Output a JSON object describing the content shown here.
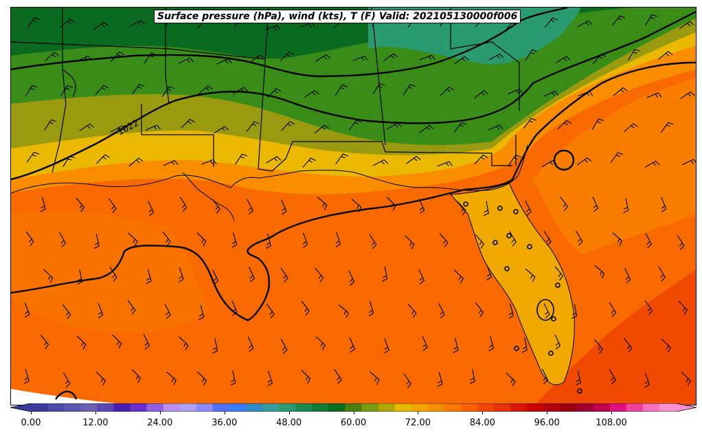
{
  "title": "Surface pressure (hPa), wind (kts), T (F) Valid: 202105130000f006",
  "isobar_label": "1022",
  "colorbar": {
    "ticks": [
      "0.00",
      "12.00",
      "24.00",
      "36.00",
      "48.00",
      "60.00",
      "72.00",
      "84.00",
      "96.00",
      "108.00"
    ],
    "colors": [
      "#3b3b9c",
      "#4a4aa8",
      "#5a56ad",
      "#6a60b0",
      "#5b45b0",
      "#4a1fb0",
      "#6a2fd0",
      "#9060e0",
      "#b890f0",
      "#b0a0ff",
      "#8c8cff",
      "#4f6fff",
      "#3a7aff",
      "#2f8ac8",
      "#3a9aa0",
      "#2a9a70",
      "#1a8a50",
      "#127a38",
      "#0a6a20",
      "#4a8010",
      "#7a9a10",
      "#b0a800",
      "#e8b800",
      "#f0a800",
      "#f59000",
      "#f87800",
      "#f86000",
      "#f04800",
      "#e83000",
      "#d81800",
      "#c80000",
      "#b00010",
      "#9a0010",
      "#a00030",
      "#c00050",
      "#e01080",
      "#f040a0",
      "#f870c0",
      "#ff90d0"
    ],
    "colors_note": "discrete color steps from 0 to 120 F"
  },
  "colors": {
    "cold_green": "#0a6a20",
    "mid_green": "#3a8c18",
    "olive": "#9a9a10",
    "yellow": "#eab800",
    "orange": "#fa8c00",
    "dark_orange": "#f86a00",
    "red_orange": "#f04a00",
    "teal": "#2a9a70"
  }
}
